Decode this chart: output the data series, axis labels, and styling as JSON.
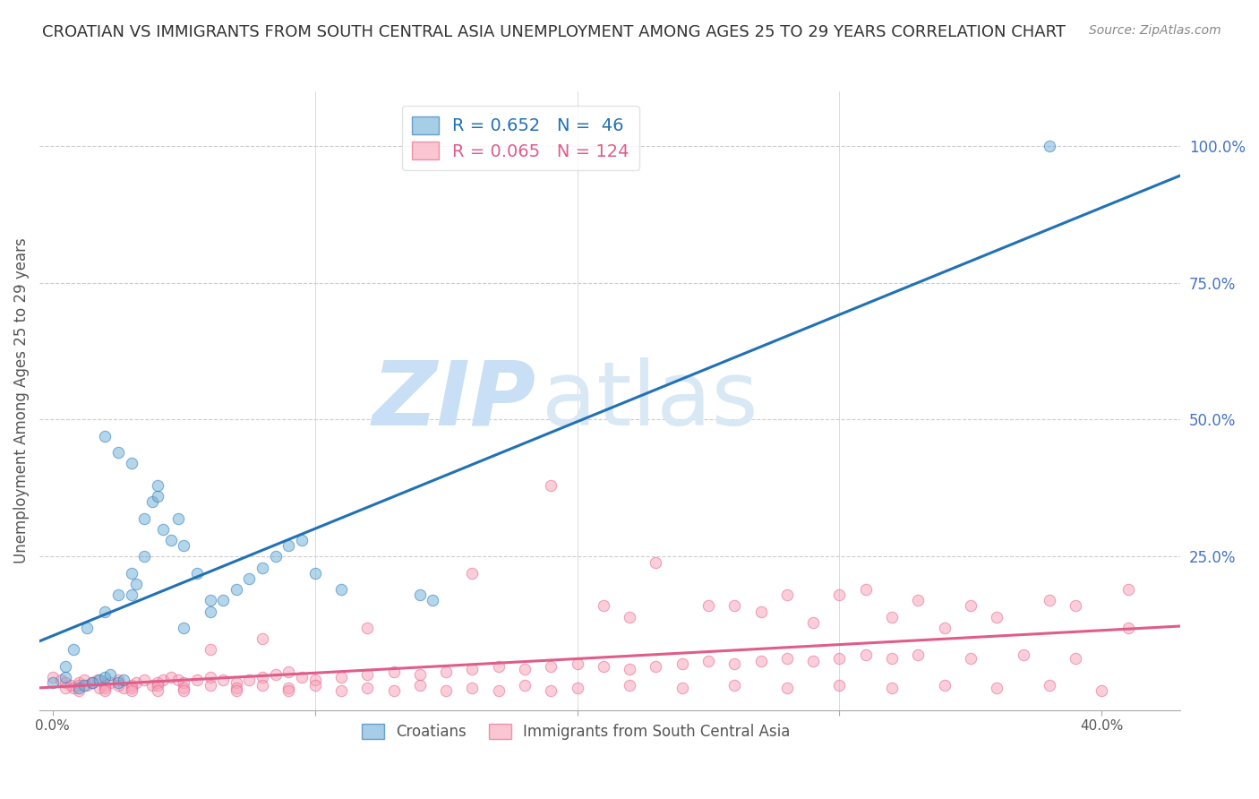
{
  "title": "CROATIAN VS IMMIGRANTS FROM SOUTH CENTRAL ASIA UNEMPLOYMENT AMONG AGES 25 TO 29 YEARS CORRELATION CHART",
  "source": "Source: ZipAtlas.com",
  "ylabel": "Unemployment Among Ages 25 to 29 years",
  "xlim": [
    -0.005,
    0.43
  ],
  "ylim": [
    -0.03,
    1.1
  ],
  "blue_R": 0.652,
  "blue_N": 46,
  "pink_R": 0.065,
  "pink_N": 124,
  "blue_color": "#6baed6",
  "pink_color": "#fa9fb5",
  "blue_line_color": "#2171b5",
  "pink_line_color": "#e05c8a",
  "title_color": "#333333",
  "right_axis_color": "#4472c4",
  "watermark_zip_color": "#c8dff5",
  "watermark_atlas_color": "#d8e8f5",
  "legend_label_blue": "Croatians",
  "legend_label_pink": "Immigrants from South Central Asia",
  "blue_scatter_x": [
    0.0,
    0.005,
    0.01,
    0.012,
    0.015,
    0.018,
    0.02,
    0.022,
    0.025,
    0.027,
    0.03,
    0.032,
    0.035,
    0.038,
    0.04,
    0.042,
    0.045,
    0.048,
    0.05,
    0.055,
    0.06,
    0.065,
    0.07,
    0.075,
    0.08,
    0.085,
    0.09,
    0.095,
    0.1,
    0.11,
    0.005,
    0.008,
    0.013,
    0.02,
    0.025,
    0.03,
    0.035,
    0.04,
    0.05,
    0.06,
    0.02,
    0.025,
    0.03,
    0.14,
    0.145,
    0.38
  ],
  "blue_scatter_y": [
    0.02,
    0.03,
    0.01,
    0.015,
    0.02,
    0.025,
    0.03,
    0.035,
    0.02,
    0.025,
    0.18,
    0.2,
    0.25,
    0.35,
    0.38,
    0.3,
    0.28,
    0.32,
    0.27,
    0.22,
    0.15,
    0.17,
    0.19,
    0.21,
    0.23,
    0.25,
    0.27,
    0.28,
    0.22,
    0.19,
    0.05,
    0.08,
    0.12,
    0.15,
    0.18,
    0.22,
    0.32,
    0.36,
    0.12,
    0.17,
    0.47,
    0.44,
    0.42,
    0.18,
    0.17,
    1.0
  ],
  "pink_scatter_x": [
    0.0,
    0.003,
    0.005,
    0.007,
    0.008,
    0.01,
    0.012,
    0.013,
    0.015,
    0.017,
    0.018,
    0.02,
    0.022,
    0.025,
    0.027,
    0.03,
    0.032,
    0.035,
    0.038,
    0.04,
    0.042,
    0.045,
    0.048,
    0.05,
    0.055,
    0.06,
    0.065,
    0.07,
    0.075,
    0.08,
    0.085,
    0.09,
    0.095,
    0.1,
    0.11,
    0.12,
    0.13,
    0.14,
    0.15,
    0.16,
    0.17,
    0.18,
    0.19,
    0.2,
    0.21,
    0.22,
    0.23,
    0.24,
    0.25,
    0.26,
    0.27,
    0.28,
    0.29,
    0.3,
    0.31,
    0.32,
    0.33,
    0.35,
    0.37,
    0.39,
    0.005,
    0.01,
    0.015,
    0.02,
    0.025,
    0.03,
    0.04,
    0.05,
    0.06,
    0.07,
    0.08,
    0.09,
    0.1,
    0.12,
    0.14,
    0.16,
    0.18,
    0.2,
    0.22,
    0.24,
    0.26,
    0.28,
    0.3,
    0.32,
    0.34,
    0.36,
    0.38,
    0.4,
    0.01,
    0.02,
    0.03,
    0.04,
    0.05,
    0.07,
    0.09,
    0.11,
    0.13,
    0.15,
    0.17,
    0.19,
    0.25,
    0.28,
    0.31,
    0.33,
    0.16,
    0.21,
    0.27,
    0.29,
    0.32,
    0.35,
    0.38,
    0.41,
    0.06,
    0.08,
    0.12,
    0.22,
    0.26,
    0.3,
    0.34,
    0.36,
    0.39,
    0.41,
    0.19,
    0.23
  ],
  "pink_scatter_y": [
    0.03,
    0.025,
    0.02,
    0.015,
    0.01,
    0.02,
    0.025,
    0.015,
    0.02,
    0.025,
    0.01,
    0.015,
    0.02,
    0.025,
    0.01,
    0.015,
    0.02,
    0.025,
    0.015,
    0.02,
    0.025,
    0.03,
    0.025,
    0.02,
    0.025,
    0.03,
    0.025,
    0.02,
    0.025,
    0.03,
    0.035,
    0.04,
    0.03,
    0.025,
    0.03,
    0.035,
    0.04,
    0.035,
    0.04,
    0.045,
    0.05,
    0.045,
    0.05,
    0.055,
    0.05,
    0.045,
    0.05,
    0.055,
    0.06,
    0.055,
    0.06,
    0.065,
    0.06,
    0.065,
    0.07,
    0.065,
    0.07,
    0.065,
    0.07,
    0.065,
    0.01,
    0.015,
    0.02,
    0.01,
    0.015,
    0.01,
    0.015,
    0.01,
    0.015,
    0.01,
    0.015,
    0.01,
    0.015,
    0.01,
    0.015,
    0.01,
    0.015,
    0.01,
    0.015,
    0.01,
    0.015,
    0.01,
    0.015,
    0.01,
    0.015,
    0.01,
    0.015,
    0.005,
    0.005,
    0.005,
    0.005,
    0.005,
    0.005,
    0.005,
    0.005,
    0.005,
    0.005,
    0.005,
    0.005,
    0.005,
    0.16,
    0.18,
    0.19,
    0.17,
    0.22,
    0.16,
    0.15,
    0.13,
    0.14,
    0.16,
    0.17,
    0.19,
    0.08,
    0.1,
    0.12,
    0.14,
    0.16,
    0.18,
    0.12,
    0.14,
    0.16,
    0.12,
    0.38,
    0.24
  ]
}
